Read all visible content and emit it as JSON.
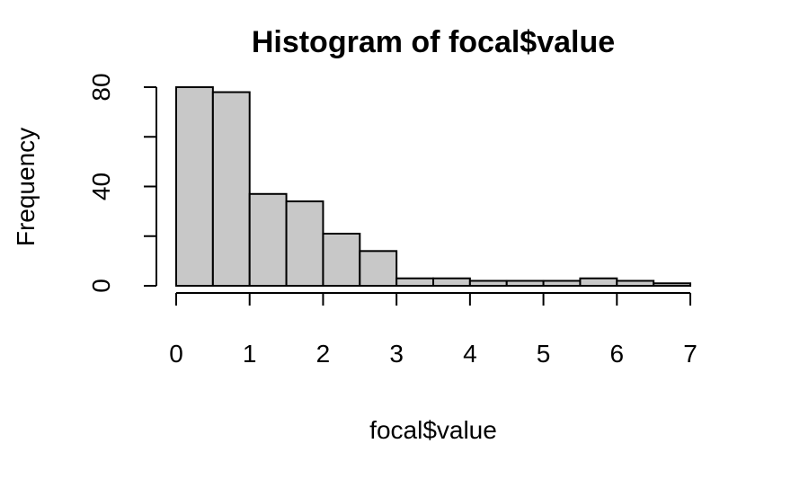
{
  "chart_data": {
    "type": "bar",
    "title": "Histogram of focal$value",
    "xlabel": "focal$value",
    "ylabel": "Frequency",
    "bins": [
      {
        "from": 0.0,
        "to": 0.5,
        "count": 80
      },
      {
        "from": 0.5,
        "to": 1.0,
        "count": 78
      },
      {
        "from": 1.0,
        "to": 1.5,
        "count": 37
      },
      {
        "from": 1.5,
        "to": 2.0,
        "count": 34
      },
      {
        "from": 2.0,
        "to": 2.5,
        "count": 21
      },
      {
        "from": 2.5,
        "to": 3.0,
        "count": 14
      },
      {
        "from": 3.0,
        "to": 3.5,
        "count": 3
      },
      {
        "from": 3.5,
        "to": 4.0,
        "count": 3
      },
      {
        "from": 4.0,
        "to": 4.5,
        "count": 2
      },
      {
        "from": 4.5,
        "to": 5.0,
        "count": 2
      },
      {
        "from": 5.0,
        "to": 5.5,
        "count": 2
      },
      {
        "from": 5.5,
        "to": 6.0,
        "count": 3
      },
      {
        "from": 6.0,
        "to": 6.5,
        "count": 2
      },
      {
        "from": 6.5,
        "to": 7.0,
        "count": 1
      }
    ],
    "xlim": [
      0,
      7
    ],
    "ylim": [
      0,
      80
    ],
    "x_ticks": [
      0,
      1,
      2,
      3,
      4,
      5,
      6,
      7
    ],
    "y_ticks": [
      0,
      20,
      40,
      60,
      80
    ],
    "y_tick_labels": [
      "0",
      "",
      "40",
      "",
      "80"
    ],
    "grid": false,
    "bar_fill": "#c8c8c8",
    "bar_edge": "#000000"
  }
}
